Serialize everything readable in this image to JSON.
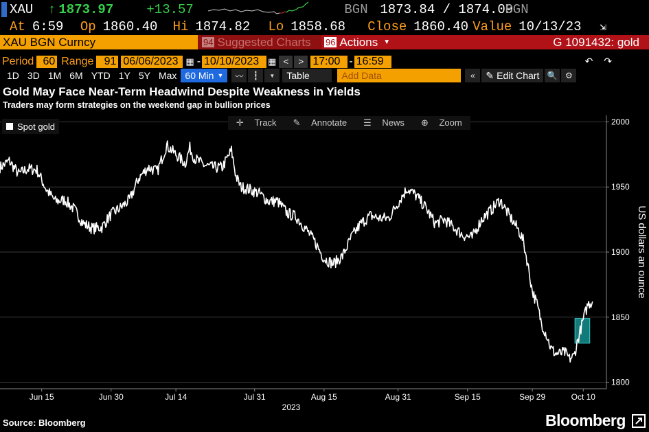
{
  "quote": {
    "ticker": "XAU",
    "last": "1873.97",
    "change": "+13.57",
    "source": "BGN",
    "bid_ask": "1873.84 / 1874.09",
    "source2": "BGN"
  },
  "stats": {
    "at_label": "At",
    "at_value": "6:59",
    "op_label": "Op",
    "op_value": "1860.40",
    "hi_label": "Hi",
    "hi_value": "1874.82",
    "lo_label": "Lo",
    "lo_value": "1858.68",
    "close_label": "Close",
    "close_value": "1860.40",
    "value_label": "Value",
    "value_value": "10/13/23"
  },
  "secbar": {
    "security": "XAU BGN Curncy",
    "suggest_num": "94",
    "suggest_label": "Suggested Charts",
    "actions_num": "96",
    "actions_label": "Actions",
    "chart_id": "G 1091432: gold"
  },
  "range": {
    "period_label": "Period",
    "period_value": "60",
    "range_label": "Range",
    "range_value": "91",
    "start": "06/06/2023",
    "end": "10/10/2023",
    "time_start": "17:00",
    "time_end": "16:59"
  },
  "toolbar": {
    "tabs": [
      "1D",
      "3D",
      "1M",
      "6M",
      "YTD",
      "1Y",
      "5Y",
      "Max"
    ],
    "interval": "60 Min",
    "table_label": "Table",
    "add_data_placeholder": "Add Data",
    "edit_chart_label": "Edit Chart"
  },
  "chart_tools": {
    "track": "Track",
    "annotate": "Annotate",
    "news": "News",
    "zoom": "Zoom"
  },
  "colors": {
    "accent_orange": "#f4a000",
    "accent_red": "#b01218",
    "accent_blue": "#1f6adf",
    "up_green": "#35d04a",
    "highlight": "#1aa3a3"
  },
  "footer": {
    "source": "Source: Bloomberg",
    "brand": "Bloomberg"
  },
  "chart_data": {
    "type": "line",
    "title": "Gold May Face Near-Term Headwind Despite Weakness in Yields",
    "subtitle": "Traders may form strategies on the weekend gap in bullion prices",
    "ylabel": "US dollars an ounce",
    "xlabel": "2023",
    "ylim": [
      1795,
      2005
    ],
    "yticks": [
      1800,
      1850,
      1900,
      1950,
      2000
    ],
    "xticks": [
      "Jun 15",
      "Jun 30",
      "Jul 14",
      "Jul 31",
      "Aug 15",
      "Aug 31",
      "Sep 15",
      "Sep 29",
      "Oct 10"
    ],
    "xtick_days": [
      9,
      24,
      38,
      55,
      70,
      86,
      101,
      115,
      126
    ],
    "x_range_days": [
      0,
      131
    ],
    "legend_placement": "top-left",
    "grid": true,
    "highlight": {
      "x_from_day": 124.2,
      "x_to_day": 127.4,
      "y_from": 1830,
      "y_to": 1849
    },
    "series": [
      {
        "name": "Spot gold",
        "x_days": [
          0,
          2,
          4,
          6,
          8,
          10,
          12,
          14,
          16,
          18,
          20,
          22,
          24,
          26,
          28,
          30,
          32,
          34,
          36,
          38,
          40,
          41,
          42,
          44,
          46,
          48,
          50,
          51,
          52,
          54,
          56,
          58,
          60,
          62,
          64,
          66,
          68,
          70,
          72,
          74,
          76,
          78,
          80,
          82,
          84,
          86,
          88,
          90,
          92,
          94,
          96,
          98,
          100,
          102,
          104,
          106,
          108,
          110,
          112,
          113,
          114,
          115,
          116,
          117,
          118,
          119,
          120,
          121,
          122,
          123,
          124,
          125,
          126,
          127,
          128
        ],
        "values": [
          1965,
          1970,
          1960,
          1964,
          1963,
          1948,
          1939,
          1940,
          1933,
          1922,
          1918,
          1919,
          1929,
          1934,
          1940,
          1957,
          1965,
          1962,
          1982,
          1975,
          1968,
          1980,
          1972,
          1967,
          1965,
          1965,
          1978,
          1958,
          1950,
          1948,
          1945,
          1939,
          1939,
          1930,
          1927,
          1918,
          1908,
          1895,
          1891,
          1897,
          1912,
          1922,
          1928,
          1926,
          1926,
          1938,
          1949,
          1943,
          1934,
          1922,
          1925,
          1919,
          1913,
          1911,
          1925,
          1932,
          1940,
          1928,
          1917,
          1909,
          1891,
          1870,
          1860,
          1845,
          1837,
          1826,
          1822,
          1822,
          1823,
          1818,
          1820,
          1835,
          1848,
          1860,
          1862
        ]
      }
    ]
  }
}
